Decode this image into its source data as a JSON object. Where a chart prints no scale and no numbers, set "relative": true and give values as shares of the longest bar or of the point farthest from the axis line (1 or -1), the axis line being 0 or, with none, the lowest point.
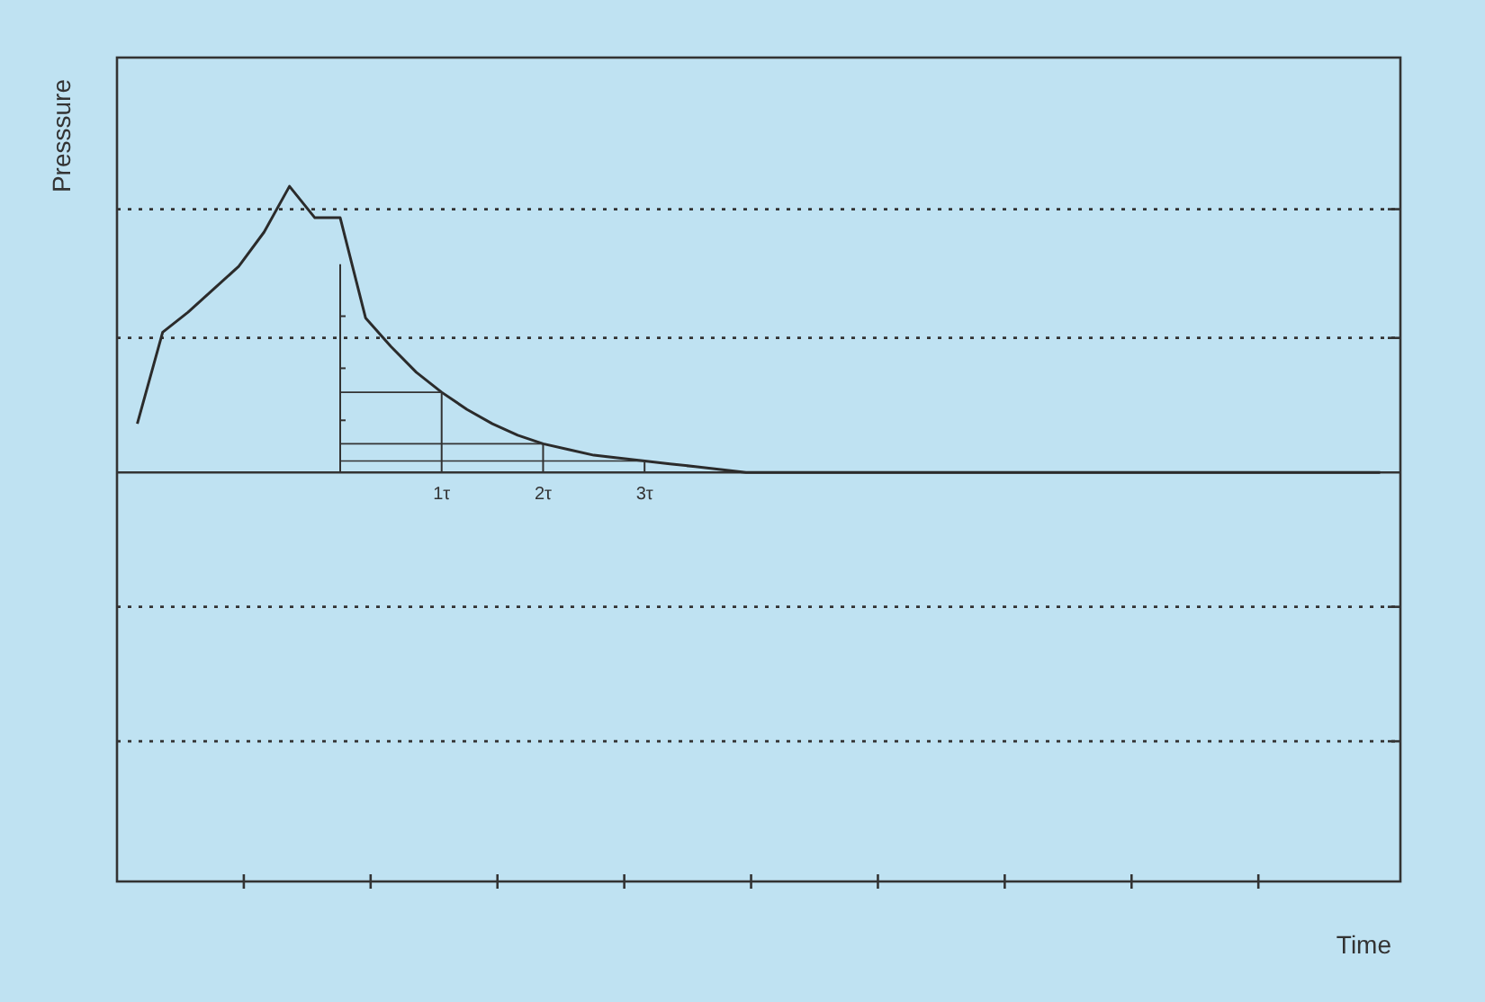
{
  "chart_data": {
    "type": "line",
    "relative": true,
    "xlabel": "Time",
    "ylabel": "Presssure",
    "ylim": [
      -1.43,
      1.45
    ],
    "marker": "none",
    "line_style": "solid",
    "categories": [
      null,
      null,
      null,
      null,
      null,
      null,
      null,
      null,
      null,
      null,
      null,
      null,
      "1τ",
      null,
      null,
      null,
      "2τ",
      null,
      null,
      null,
      "3τ",
      null,
      null,
      null,
      null,
      null,
      null,
      null,
      null,
      null,
      null,
      null,
      null,
      null,
      null,
      null,
      null,
      null,
      null,
      null,
      null,
      null,
      null,
      null,
      null,
      null,
      null,
      null,
      null,
      null
    ],
    "series": [
      {
        "color": "#2b2b2b",
        "values": [
          0.17,
          0.49,
          0.56,
          0.64,
          0.72,
          0.84,
          1,
          0.89,
          0.89,
          0.54,
          0.44,
          0.35,
          0.28,
          0.22,
          0.17,
          0.13,
          0.1,
          0.08,
          0.06,
          0.05,
          0.04,
          0.03,
          0.02,
          0.01,
          0,
          0,
          0,
          0,
          0,
          0,
          0,
          0,
          0,
          0,
          0,
          0,
          0,
          0,
          0,
          0,
          0,
          0,
          0,
          0,
          0,
          0,
          0,
          0,
          0,
          0
        ]
      }
    ],
    "ref_lines": [
      {
        "axis": "y",
        "value": 0.92,
        "line_style": "dotted"
      },
      {
        "axis": "y",
        "value": 0.47,
        "line_style": "dotted"
      },
      {
        "axis": "y",
        "value": -0.47,
        "line_style": "dotted"
      },
      {
        "axis": "y",
        "value": -0.94,
        "line_style": "dotted"
      }
    ]
  }
}
